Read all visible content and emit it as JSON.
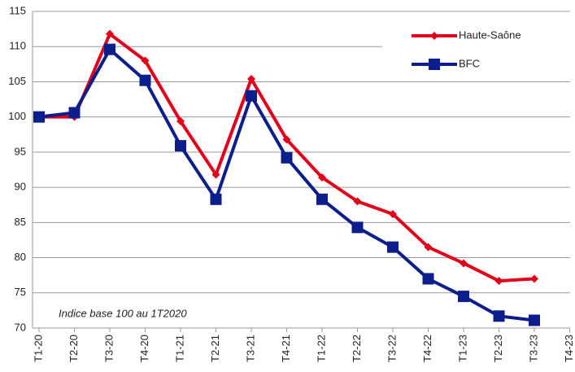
{
  "chart_data": {
    "type": "line",
    "annotation": "Indice base 100 au 1T2020",
    "categories": [
      "T1-20",
      "T2-20",
      "T3-20",
      "T4-20",
      "T1-21",
      "T2-21",
      "T3-21",
      "T4-21",
      "T1-22",
      "T2-22",
      "T3-22",
      "T4-22",
      "T1-23",
      "T2-23",
      "T3-23",
      "T4-23"
    ],
    "series": [
      {
        "name": "Haute-Saône",
        "color": "#e2001a",
        "marker": "diamond",
        "values": [
          100,
          100,
          111.8,
          108,
          99.4,
          91.8,
          105.4,
          96.8,
          91.4,
          88,
          86.2,
          81.5,
          79.2,
          76.7,
          77,
          null
        ]
      },
      {
        "name": "BFC",
        "color": "#0c1d8c",
        "marker": "square",
        "values": [
          100,
          100.6,
          109.6,
          105.2,
          95.9,
          88.3,
          103,
          94.2,
          88.3,
          84.3,
          81.5,
          77,
          74.5,
          71.7,
          71.1,
          null
        ]
      }
    ],
    "ylim": [
      70,
      115
    ],
    "yticks": [
      70,
      75,
      80,
      85,
      90,
      95,
      100,
      105,
      110,
      115
    ],
    "grid": true,
    "legend": "top-right"
  }
}
